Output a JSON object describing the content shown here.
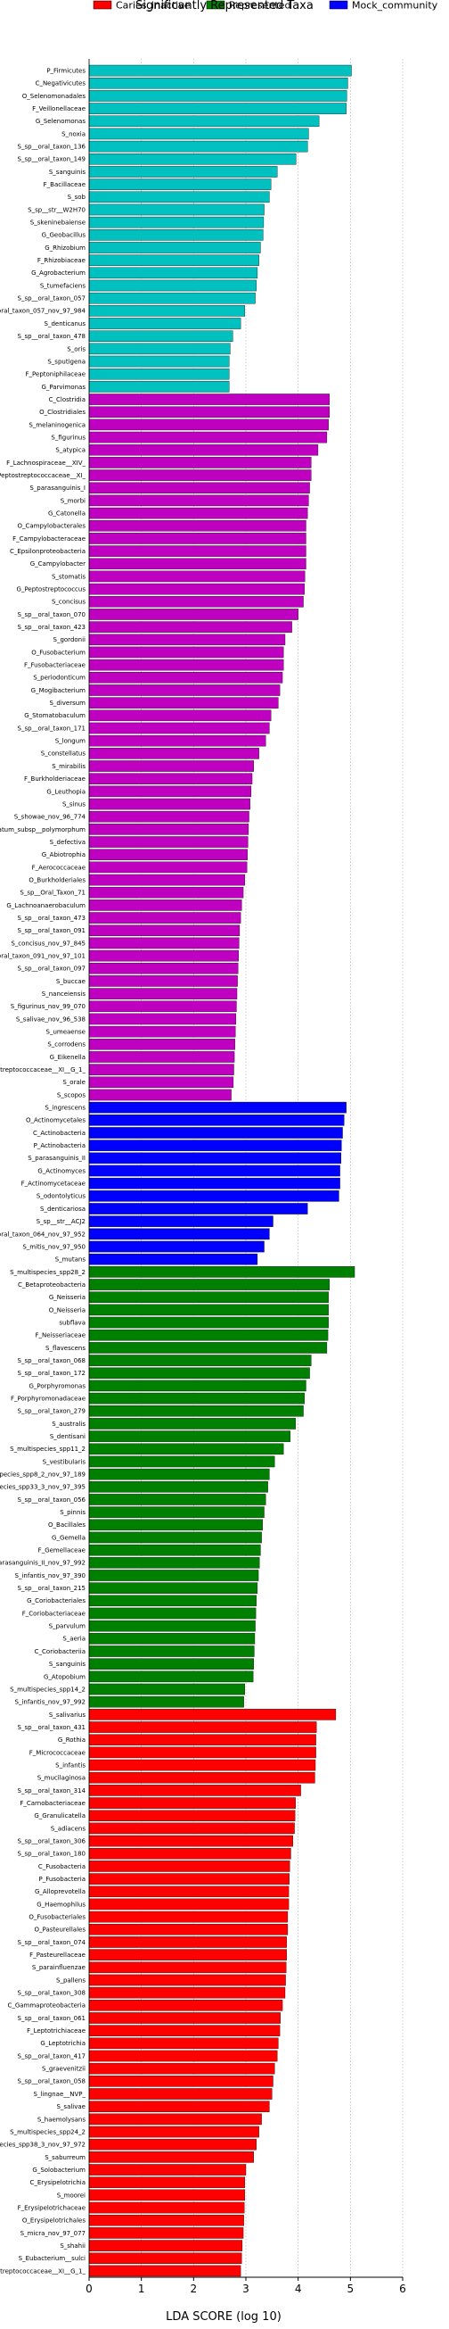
{
  "chart_data": {
    "type": "bar",
    "orientation": "horizontal",
    "title": "Significantly Represented Taxa",
    "xlabel": "LDA SCORE (log 10)",
    "xlim": [
      0,
      6
    ],
    "xticks": [
      0,
      1,
      2,
      3,
      4,
      5,
      6
    ],
    "grid": true,
    "legend_position": "top",
    "legend": [
      {
        "name": "Caries_inactive",
        "color": "#ff0000"
      },
      {
        "name": "Represented",
        "color": "#008000"
      },
      {
        "name": "Mock_community",
        "color": "#0000ff"
      }
    ],
    "series_colors": {
      "cyan": "#00c0c0",
      "magenta": "#c000c0",
      "blue": "#0000ff",
      "green": "#008000",
      "red": "#ff0000"
    },
    "groups": [
      {
        "color_key": "cyan",
        "items": [
          {
            "label": "P_Firmicutes",
            "value": 5.02
          },
          {
            "label": "C_Negativicutes",
            "value": 4.95
          },
          {
            "label": "O_Selenomonadales",
            "value": 4.93
          },
          {
            "label": "F_Veillonellaceae",
            "value": 4.92
          },
          {
            "label": "G_Selenomonas",
            "value": 4.4
          },
          {
            "label": "S_noxia",
            "value": 4.2
          },
          {
            "label": "S_sp__oral_taxon_136",
            "value": 4.18
          },
          {
            "label": "S_sp__oral_taxon_149",
            "value": 3.96
          },
          {
            "label": "S_sanguinis",
            "value": 3.6
          },
          {
            "label": "F_Bacillaceae",
            "value": 3.48
          },
          {
            "label": "S_sob",
            "value": 3.45
          },
          {
            "label": "S_sp__str__W2H70",
            "value": 3.35
          },
          {
            "label": "S_skeninebaiense",
            "value": 3.34
          },
          {
            "label": "G_Geobacillus",
            "value": 3.33
          },
          {
            "label": "G_Rhizobium",
            "value": 3.28
          },
          {
            "label": "F_Rhizobiaceae",
            "value": 3.25
          },
          {
            "label": "G_Agrobacterium",
            "value": 3.22
          },
          {
            "label": "S_tumefaciens",
            "value": 3.2
          },
          {
            "label": "S_sp__oral_taxon_057",
            "value": 3.18
          },
          {
            "label": "S_oral_taxon_057_nov_97_984",
            "value": 2.98
          },
          {
            "label": "S_denticanus",
            "value": 2.9
          },
          {
            "label": "S_sp__oral_taxon_478",
            "value": 2.75
          },
          {
            "label": "S_oris",
            "value": 2.7
          },
          {
            "label": "S_sputigena",
            "value": 2.68
          },
          {
            "label": "F_Peptoniphilaceae",
            "value": 2.68
          },
          {
            "label": "G_Parvimonas",
            "value": 2.68
          }
        ]
      },
      {
        "color_key": "magenta",
        "items": [
          {
            "label": "C_Clostridia",
            "value": 4.6
          },
          {
            "label": "O_Clostridiales",
            "value": 4.6
          },
          {
            "label": "S_melaninogenica",
            "value": 4.58
          },
          {
            "label": "S_figurinus",
            "value": 4.55
          },
          {
            "label": "S_atypica",
            "value": 4.38
          },
          {
            "label": "F_Lachnospiraceae__XIV_",
            "value": 4.25
          },
          {
            "label": "F_Peptostreptococcaceae__XI_",
            "value": 4.25
          },
          {
            "label": "S_parasanguinis_I",
            "value": 4.22
          },
          {
            "label": "S_morbi",
            "value": 4.2
          },
          {
            "label": "G_Catonella",
            "value": 4.18
          },
          {
            "label": "O_Campylobacterales",
            "value": 4.15
          },
          {
            "label": "F_Campylobacteraceae",
            "value": 4.15
          },
          {
            "label": "C_Epsilonproteobacteria",
            "value": 4.15
          },
          {
            "label": "G_Campylobacter",
            "value": 4.15
          },
          {
            "label": "S_stomatis",
            "value": 4.13
          },
          {
            "label": "G_Peptostreptococcus",
            "value": 4.12
          },
          {
            "label": "S_concisus",
            "value": 4.1
          },
          {
            "label": "S_sp__oral_taxon_070",
            "value": 4.0
          },
          {
            "label": "S_sp__oral_taxon_423",
            "value": 3.88
          },
          {
            "label": "S_gordonii",
            "value": 3.75
          },
          {
            "label": "O_Fusobacterium",
            "value": 3.72
          },
          {
            "label": "F_Fusobacteriaceae",
            "value": 3.72
          },
          {
            "label": "S_periodonticum",
            "value": 3.7
          },
          {
            "label": "G_Mogibacterium",
            "value": 3.65
          },
          {
            "label": "S_diversum",
            "value": 3.62
          },
          {
            "label": "G_Stomatobaculum",
            "value": 3.48
          },
          {
            "label": "S_sp__oral_taxon_171",
            "value": 3.45
          },
          {
            "label": "S_longum",
            "value": 3.38
          },
          {
            "label": "S_constellatus",
            "value": 3.25
          },
          {
            "label": "S_mirabilis",
            "value": 3.15
          },
          {
            "label": "F_Burkholderiaceae",
            "value": 3.12
          },
          {
            "label": "G_Leuthopia",
            "value": 3.1
          },
          {
            "label": "S_sinus",
            "value": 3.08
          },
          {
            "label": "S_showae_nov_96_774",
            "value": 3.06
          },
          {
            "label": "S_nucleatum_subsp__polymorphum",
            "value": 3.05
          },
          {
            "label": "S_defectiva",
            "value": 3.04
          },
          {
            "label": "G_Abiotrophia",
            "value": 3.03
          },
          {
            "label": "F_Aerococcaceae",
            "value": 3.02
          },
          {
            "label": "O_Burkholderiales",
            "value": 2.98
          },
          {
            "label": "S_sp__Oral_Taxon_71",
            "value": 2.95
          },
          {
            "label": "G_Lachnoanaerobaculum",
            "value": 2.92
          },
          {
            "label": "S_sp__oral_taxon_473",
            "value": 2.9
          },
          {
            "label": "S_sp__oral_taxon_091",
            "value": 2.88
          },
          {
            "label": "S_concisus_nov_97_845",
            "value": 2.87
          },
          {
            "label": "S_oral_taxon_091_nov_97_101",
            "value": 2.86
          },
          {
            "label": "S_sp__oral_taxon_097",
            "value": 2.85
          },
          {
            "label": "S_buccae",
            "value": 2.84
          },
          {
            "label": "S_nanceiensis",
            "value": 2.83
          },
          {
            "label": "S_figurinus_nov_99_070",
            "value": 2.82
          },
          {
            "label": "S_salivae_nov_96_538",
            "value": 2.81
          },
          {
            "label": "S_umeaense",
            "value": 2.8
          },
          {
            "label": "S_corrodens",
            "value": 2.79
          },
          {
            "label": "G_Eikenella",
            "value": 2.78
          },
          {
            "label": "F_Peptostreptococcaceae__XI__G_1_",
            "value": 2.77
          },
          {
            "label": "S_orale",
            "value": 2.76
          },
          {
            "label": "S_scopos",
            "value": 2.72
          }
        ]
      },
      {
        "color_key": "blue",
        "items": [
          {
            "label": "S_ingrescens",
            "value": 4.92
          },
          {
            "label": "O_Actinomycetales",
            "value": 4.88
          },
          {
            "label": "C_Actinobacteria",
            "value": 4.85
          },
          {
            "label": "P_Actinobacteria",
            "value": 4.83
          },
          {
            "label": "S_parasanguinis_II",
            "value": 4.82
          },
          {
            "label": "G_Actinomyces",
            "value": 4.8
          },
          {
            "label": "F_Actinomycetaceae",
            "value": 4.8
          },
          {
            "label": "S_odontolyticus",
            "value": 4.78
          },
          {
            "label": "S_denticariosa",
            "value": 4.18
          },
          {
            "label": "S_sp__str__ACJ2",
            "value": 3.52
          },
          {
            "label": "S_oral_taxon_064_nov_97_952",
            "value": 3.45
          },
          {
            "label": "S_mitis_nov_97_950",
            "value": 3.35
          },
          {
            "label": "S_mutans",
            "value": 3.22
          }
        ]
      },
      {
        "color_key": "green",
        "items": [
          {
            "label": "S_multispecies_spp28_2",
            "value": 5.08
          },
          {
            "label": "C_Betaproteobacteria",
            "value": 4.6
          },
          {
            "label": "G_Neisseria",
            "value": 4.58
          },
          {
            "label": "O_Neisseria",
            "value": 4.58
          },
          {
            "label": "subflava",
            "value": 4.58
          },
          {
            "label": "F_Neisseriaceae",
            "value": 4.57
          },
          {
            "label": "S_flavescens",
            "value": 4.55
          },
          {
            "label": "S_sp__oral_taxon_068",
            "value": 4.25
          },
          {
            "label": "S_sp__oral_taxon_172",
            "value": 4.22
          },
          {
            "label": "G_Porphyromonas",
            "value": 4.15
          },
          {
            "label": "F_Porphyromonadaceae",
            "value": 4.12
          },
          {
            "label": "S_sp__oral_taxon_279",
            "value": 4.1
          },
          {
            "label": "S_australis",
            "value": 3.95
          },
          {
            "label": "S_dentisani",
            "value": 3.85
          },
          {
            "label": "S_multispecies_spp11_2",
            "value": 3.72
          },
          {
            "label": "S_vestibularis",
            "value": 3.55
          },
          {
            "label": "S_multispecies_spp8_2_nov_97_189",
            "value": 3.45
          },
          {
            "label": "S_multispecies_spp33_3_nov_97_395",
            "value": 3.42
          },
          {
            "label": "S_sp__oral_taxon_056",
            "value": 3.38
          },
          {
            "label": "S_pinnis",
            "value": 3.35
          },
          {
            "label": "O_Bacillales",
            "value": 3.32
          },
          {
            "label": "G_Gemella",
            "value": 3.3
          },
          {
            "label": "F_Gemellaceae",
            "value": 3.28
          },
          {
            "label": "S_parasanguinis_II_nov_97_992",
            "value": 3.26
          },
          {
            "label": "S_infantis_nov_97_390",
            "value": 3.24
          },
          {
            "label": "S_sp__oral_taxon_215",
            "value": 3.22
          },
          {
            "label": "G_Coriobacteriales",
            "value": 3.2
          },
          {
            "label": "F_Coriobacteriaceae",
            "value": 3.19
          },
          {
            "label": "S_parvulum",
            "value": 3.18
          },
          {
            "label": "S_aeria",
            "value": 3.17
          },
          {
            "label": "C_Coriobacteriia",
            "value": 3.16
          },
          {
            "label": "S_sanguinis",
            "value": 3.15
          },
          {
            "label": "G_Atopobium",
            "value": 3.14
          },
          {
            "label": "S_multispecies_spp14_2",
            "value": 2.98
          },
          {
            "label": "S_infantis_nov_97_992",
            "value": 2.96
          }
        ]
      },
      {
        "color_key": "red",
        "items": [
          {
            "label": "S_salivarius",
            "value": 4.72
          },
          {
            "label": "S_sp__oral_taxon_431",
            "value": 4.35
          },
          {
            "label": "G_Rothia",
            "value": 4.34
          },
          {
            "label": "F_Micrococcaceae",
            "value": 4.34
          },
          {
            "label": "S_infantis",
            "value": 4.33
          },
          {
            "label": "S_mucilaginosa",
            "value": 4.32
          },
          {
            "label": "S_sp__oral_taxon_314",
            "value": 4.05
          },
          {
            "label": "F_Carnobacteriaceae",
            "value": 3.95
          },
          {
            "label": "G_Granulicatella",
            "value": 3.94
          },
          {
            "label": "S_adiacens",
            "value": 3.93
          },
          {
            "label": "S_sp__oral_taxon_306",
            "value": 3.9
          },
          {
            "label": "S_sp__oral_taxon_180",
            "value": 3.86
          },
          {
            "label": "C_Fusobacteria",
            "value": 3.84
          },
          {
            "label": "P_Fusobacteria",
            "value": 3.83
          },
          {
            "label": "G_Alloprevotella",
            "value": 3.82
          },
          {
            "label": "G_Haemophilus",
            "value": 3.82
          },
          {
            "label": "O_Fusobacteriales",
            "value": 3.8
          },
          {
            "label": "O_Pasteurellales",
            "value": 3.8
          },
          {
            "label": "S_sp__oral_taxon_074",
            "value": 3.78
          },
          {
            "label": "F_Pasteurellaceae",
            "value": 3.78
          },
          {
            "label": "S_parainfluenzae",
            "value": 3.77
          },
          {
            "label": "S_pallens",
            "value": 3.76
          },
          {
            "label": "S_sp__oral_taxon_308",
            "value": 3.75
          },
          {
            "label": "C_Gammaproteobacteria",
            "value": 3.7
          },
          {
            "label": "S_sp__oral_taxon_061",
            "value": 3.66
          },
          {
            "label": "F_Leptotrichiaceae",
            "value": 3.65
          },
          {
            "label": "G_Leptotrichia",
            "value": 3.62
          },
          {
            "label": "S_sp__oral_taxon_417",
            "value": 3.6
          },
          {
            "label": "S_graevenitzii",
            "value": 3.55
          },
          {
            "label": "S_sp__oral_taxon_058",
            "value": 3.52
          },
          {
            "label": "S_lingnae__NVP_",
            "value": 3.5
          },
          {
            "label": "S_salivae",
            "value": 3.45
          },
          {
            "label": "S_haemolysans",
            "value": 3.3
          },
          {
            "label": "S_multispecies_spp24_2",
            "value": 3.25
          },
          {
            "label": "S_multispecies_spp38_3_nov_97_972",
            "value": 3.2
          },
          {
            "label": "S_saburreum",
            "value": 3.15
          },
          {
            "label": "G_Solobacterium",
            "value": 3.0
          },
          {
            "label": "C_Erysipelotrichia",
            "value": 2.98
          },
          {
            "label": "S_moorei",
            "value": 2.98
          },
          {
            "label": "F_Erysipelotrichaceae",
            "value": 2.97
          },
          {
            "label": "O_Erysipelotrichales",
            "value": 2.96
          },
          {
            "label": "S_micra_nov_97_077",
            "value": 2.95
          },
          {
            "label": "S_shahii",
            "value": 2.93
          },
          {
            "label": "S_Eubacterium__sulci",
            "value": 2.92
          },
          {
            "label": "F_Peptostreptococcaceae__XI__G_1_",
            "value": 2.9
          }
        ]
      }
    ]
  }
}
